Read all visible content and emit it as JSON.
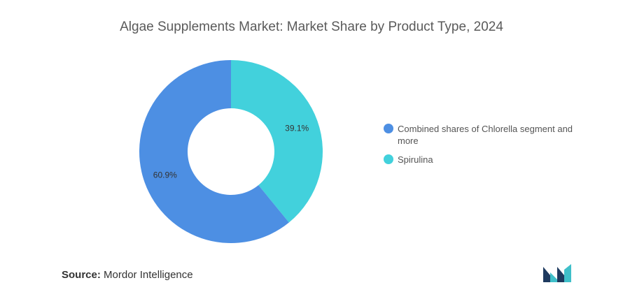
{
  "chart_data": {
    "type": "pie",
    "title": "Algae Supplements Market: Market Share by Product Type, 2024",
    "categories": [
      "Combined shares of Chlorella segment and more",
      "Spirulina"
    ],
    "values": [
      60.9,
      39.1
    ],
    "value_labels": [
      "60.9%",
      "39.1%"
    ],
    "colors": [
      "#4d8fe3",
      "#42d1dc"
    ],
    "legend_position": "right"
  },
  "source": {
    "label": "Source:",
    "value": "Mordor Intelligence"
  },
  "logo": {
    "icon": "mordor-intelligence-logo-icon",
    "colors": [
      "#1e3a5f",
      "#3fbfc9"
    ]
  }
}
